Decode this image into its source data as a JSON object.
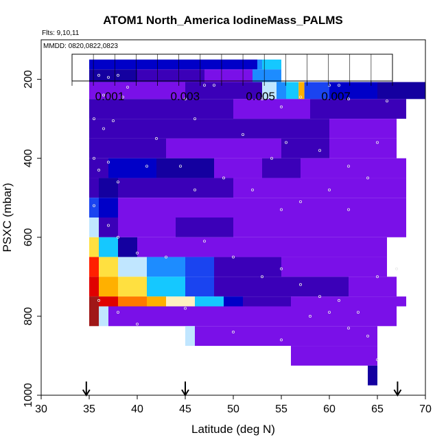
{
  "title": "ATOM1 North_America IodineMass_PALMS",
  "flights_note": "Flts: 9,10,11",
  "dates_note": "MMDD: 0820,0822,0823",
  "colors": {
    "axis": "#000000",
    "point_outline": "#e8e8e8",
    "arrow": "#000000"
  },
  "chart_data": {
    "type": "heatmap",
    "title": "ATOM1 North_America IodineMass_PALMS",
    "xlabel": "Latitude (deg N)",
    "ylabel": "PSXC (mbar)",
    "xlim": [
      30,
      70
    ],
    "ylim": [
      1000,
      100
    ],
    "x_ticks": [
      30,
      35,
      40,
      45,
      50,
      55,
      60,
      65,
      70
    ],
    "y_ticks": [
      200,
      400,
      600,
      800,
      1000
    ],
    "grid": false,
    "colorbar": {
      "range": [
        0,
        0.0085
      ],
      "tick_values": [
        0.001,
        0.003,
        0.005,
        0.007
      ],
      "tick_labels": [
        "0.001",
        "0.003",
        "0.005",
        "0.007"
      ],
      "colors": [
        "#7a10e8",
        "#3b00b8",
        "#1400a0",
        "#0000c8",
        "#1a44f0",
        "#1d8cff",
        "#15c8ff",
        "#c0e6ff",
        "#fff0c0",
        "#ffe040",
        "#ffb000",
        "#ff7a00",
        "#ff2000",
        "#e00000",
        "#a01818"
      ]
    },
    "rows": [
      {
        "p": 175,
        "lat": [
          [
            35,
            52.5,
            0.002
          ],
          [
            52.5,
            53.0,
            0.0034
          ],
          [
            53.0,
            55.0,
            0.0036
          ]
        ]
      },
      {
        "p": 200,
        "lat": [
          [
            35,
            40,
            0.0015
          ],
          [
            40,
            47,
            0.0009
          ],
          [
            47,
            52,
            0.0005
          ],
          [
            52,
            55,
            0.003
          ]
        ]
      },
      {
        "p": 232,
        "lat": [
          [
            35,
            38,
            0.0003
          ],
          [
            38,
            42,
            0.0002
          ],
          [
            42,
            45,
            0.0001
          ],
          [
            45,
            50,
            0.0006
          ],
          [
            50,
            53,
            0.001
          ],
          [
            53,
            54.5,
            0.004
          ],
          [
            54.5,
            55.5,
            0.003
          ],
          [
            55.5,
            56.8,
            0.0035
          ],
          [
            56.8,
            57.4,
            0.006
          ],
          [
            57.4,
            60,
            0.0023
          ],
          [
            60,
            65,
            0.0018
          ],
          [
            65,
            70,
            0.0013
          ]
        ]
      },
      {
        "p": 275,
        "lat": [
          [
            35,
            40,
            0.0008
          ],
          [
            40,
            50,
            0.0006
          ],
          [
            50,
            55,
            0.0004
          ],
          [
            55,
            58,
            0.0002
          ],
          [
            58,
            68,
            0.0008
          ]
        ]
      },
      {
        "p": 325,
        "lat": [
          [
            35,
            40,
            0.0009
          ],
          [
            40,
            45,
            0.0008
          ],
          [
            45,
            50,
            0.0007
          ],
          [
            50,
            55,
            0.0006
          ],
          [
            55,
            60,
            0.0008
          ],
          [
            60,
            64,
            0.0005
          ],
          [
            64,
            67,
            0.0002
          ]
        ]
      },
      {
        "p": 375,
        "lat": [
          [
            35,
            37,
            0.0008
          ],
          [
            37,
            43,
            0.0007
          ],
          [
            43,
            50,
            0.0004
          ],
          [
            50,
            55,
            0.0005
          ],
          [
            55,
            60,
            0.0006
          ],
          [
            60,
            67,
            0.0004
          ]
        ]
      },
      {
        "p": 425,
        "lat": [
          [
            35,
            37,
            0.0009
          ],
          [
            37,
            42,
            0.0018
          ],
          [
            42,
            48,
            0.0012
          ],
          [
            48,
            53,
            0.0003
          ],
          [
            53,
            57,
            0.0007
          ],
          [
            57,
            62,
            0.0003
          ],
          [
            62,
            68,
            0.0002
          ]
        ]
      },
      {
        "p": 475,
        "lat": [
          [
            35,
            36,
            0.0009
          ],
          [
            36,
            38,
            0.0012
          ],
          [
            38,
            43,
            0.0009
          ],
          [
            43,
            50,
            0.0007
          ],
          [
            50,
            55,
            0.0005
          ],
          [
            55,
            60,
            0.0005
          ],
          [
            60,
            68,
            0.0003
          ]
        ]
      },
      {
        "p": 525,
        "lat": [
          [
            35,
            36,
            0.0026
          ],
          [
            36,
            38,
            0.0018
          ],
          [
            38,
            44,
            0.0005
          ],
          [
            44,
            50,
            0.0003
          ],
          [
            50,
            55,
            0.0003
          ],
          [
            55,
            60,
            0.0004
          ],
          [
            60,
            68,
            0.0003
          ]
        ]
      },
      {
        "p": 575,
        "lat": [
          [
            35,
            36,
            0.004
          ],
          [
            36,
            38,
            0.0009
          ],
          [
            38,
            44,
            0.0004
          ],
          [
            44,
            50,
            0.0006
          ],
          [
            50,
            55,
            0.0003
          ],
          [
            55,
            60,
            0.0005
          ],
          [
            60,
            68,
            0.0004
          ]
        ]
      },
      {
        "p": 625,
        "lat": [
          [
            35,
            36,
            0.0055
          ],
          [
            36,
            38,
            0.0035
          ],
          [
            38,
            40,
            0.0012
          ],
          [
            40,
            48,
            0.0005
          ],
          [
            48,
            55,
            0.0004
          ],
          [
            55,
            60,
            0.0005
          ],
          [
            60,
            66,
            0.0003
          ]
        ]
      },
      {
        "p": 675,
        "lat": [
          [
            35,
            36,
            0.007
          ],
          [
            36,
            38,
            0.0055
          ],
          [
            38,
            41,
            0.0045
          ],
          [
            41,
            45,
            0.0033
          ],
          [
            45,
            48,
            0.0024
          ],
          [
            48,
            52,
            0.0009
          ],
          [
            52,
            55,
            0.0008
          ],
          [
            55,
            60,
            0.0005
          ],
          [
            60,
            66,
            0.0003
          ]
        ]
      },
      {
        "p": 725,
        "lat": [
          [
            35,
            36,
            0.0077
          ],
          [
            36,
            38,
            0.006
          ],
          [
            38,
            41,
            0.0052
          ],
          [
            41,
            45,
            0.0038
          ],
          [
            45,
            48,
            0.0025
          ],
          [
            48,
            53,
            0.001
          ],
          [
            53,
            56,
            0.0008
          ],
          [
            56,
            62,
            0.0006
          ],
          [
            62,
            67,
            0.0004
          ]
        ]
      },
      {
        "p": 775,
        "lat": [
          [
            35,
            36,
            0.008
          ],
          [
            36,
            38,
            0.0075
          ],
          [
            38,
            41,
            0.0068
          ],
          [
            41,
            43,
            0.006
          ],
          [
            43,
            46,
            0.0048
          ],
          [
            46,
            49,
            0.0035
          ],
          [
            49,
            51,
            0.002
          ],
          [
            51,
            56,
            0.0007
          ],
          [
            56,
            60,
            0.0005
          ],
          [
            60,
            68,
            0.0003
          ]
        ]
      },
      {
        "p": 800,
        "lat": [
          [
            35,
            36,
            0.008
          ],
          [
            36,
            37,
            0.0045
          ],
          [
            37,
            50,
            0.0004
          ],
          [
            50,
            55,
            0.0005
          ],
          [
            55,
            60,
            0.0004
          ],
          [
            60,
            67,
            0.0002
          ]
        ]
      },
      {
        "p": 850,
        "lat": [
          [
            45,
            46,
            0.0045
          ],
          [
            46,
            65,
            0.0003
          ]
        ]
      },
      {
        "p": 900,
        "lat": [
          [
            56,
            65,
            0.0003
          ]
        ]
      },
      {
        "p": 950,
        "lat": [
          [
            64,
            65,
            0.0015
          ]
        ]
      }
    ],
    "sample_points": [
      [
        36,
        190
      ],
      [
        37,
        195
      ],
      [
        38,
        190
      ],
      [
        39,
        220
      ],
      [
        36.5,
        240
      ],
      [
        38.5,
        245
      ],
      [
        45,
        250
      ],
      [
        47,
        215
      ],
      [
        48,
        215
      ],
      [
        53,
        250
      ],
      [
        55,
        270
      ],
      [
        57,
        245
      ],
      [
        60,
        215
      ],
      [
        61,
        215
      ],
      [
        62,
        250
      ],
      [
        66,
        255
      ],
      [
        35.5,
        300
      ],
      [
        36.5,
        325
      ],
      [
        37.5,
        305
      ],
      [
        42,
        350
      ],
      [
        46,
        300
      ],
      [
        51,
        340
      ],
      [
        54,
        400
      ],
      [
        55.5,
        360
      ],
      [
        59,
        380
      ],
      [
        62,
        420
      ],
      [
        64,
        450
      ],
      [
        65,
        360
      ],
      [
        35.5,
        400
      ],
      [
        36,
        430
      ],
      [
        37,
        410
      ],
      [
        38,
        460
      ],
      [
        41,
        420
      ],
      [
        44.5,
        420
      ],
      [
        46,
        480
      ],
      [
        49,
        450
      ],
      [
        52,
        480
      ],
      [
        55,
        530
      ],
      [
        57,
        510
      ],
      [
        60,
        480
      ],
      [
        62,
        530
      ],
      [
        35.5,
        520
      ],
      [
        37,
        570
      ],
      [
        38,
        600
      ],
      [
        40,
        640
      ],
      [
        43,
        650
      ],
      [
        47,
        610
      ],
      [
        50,
        650
      ],
      [
        53,
        700
      ],
      [
        55,
        680
      ],
      [
        57,
        720
      ],
      [
        59,
        750
      ],
      [
        61,
        760
      ],
      [
        63,
        790
      ],
      [
        65,
        700
      ],
      [
        67,
        680
      ],
      [
        36,
        760
      ],
      [
        38,
        790
      ],
      [
        40,
        820
      ],
      [
        45,
        780
      ],
      [
        50,
        840
      ],
      [
        55,
        860
      ],
      [
        58,
        800
      ],
      [
        60,
        790
      ],
      [
        62,
        830
      ],
      [
        64,
        850
      ],
      [
        65,
        910
      ]
    ],
    "flight_markers": [
      34.7,
      45.0,
      67.1
    ]
  }
}
